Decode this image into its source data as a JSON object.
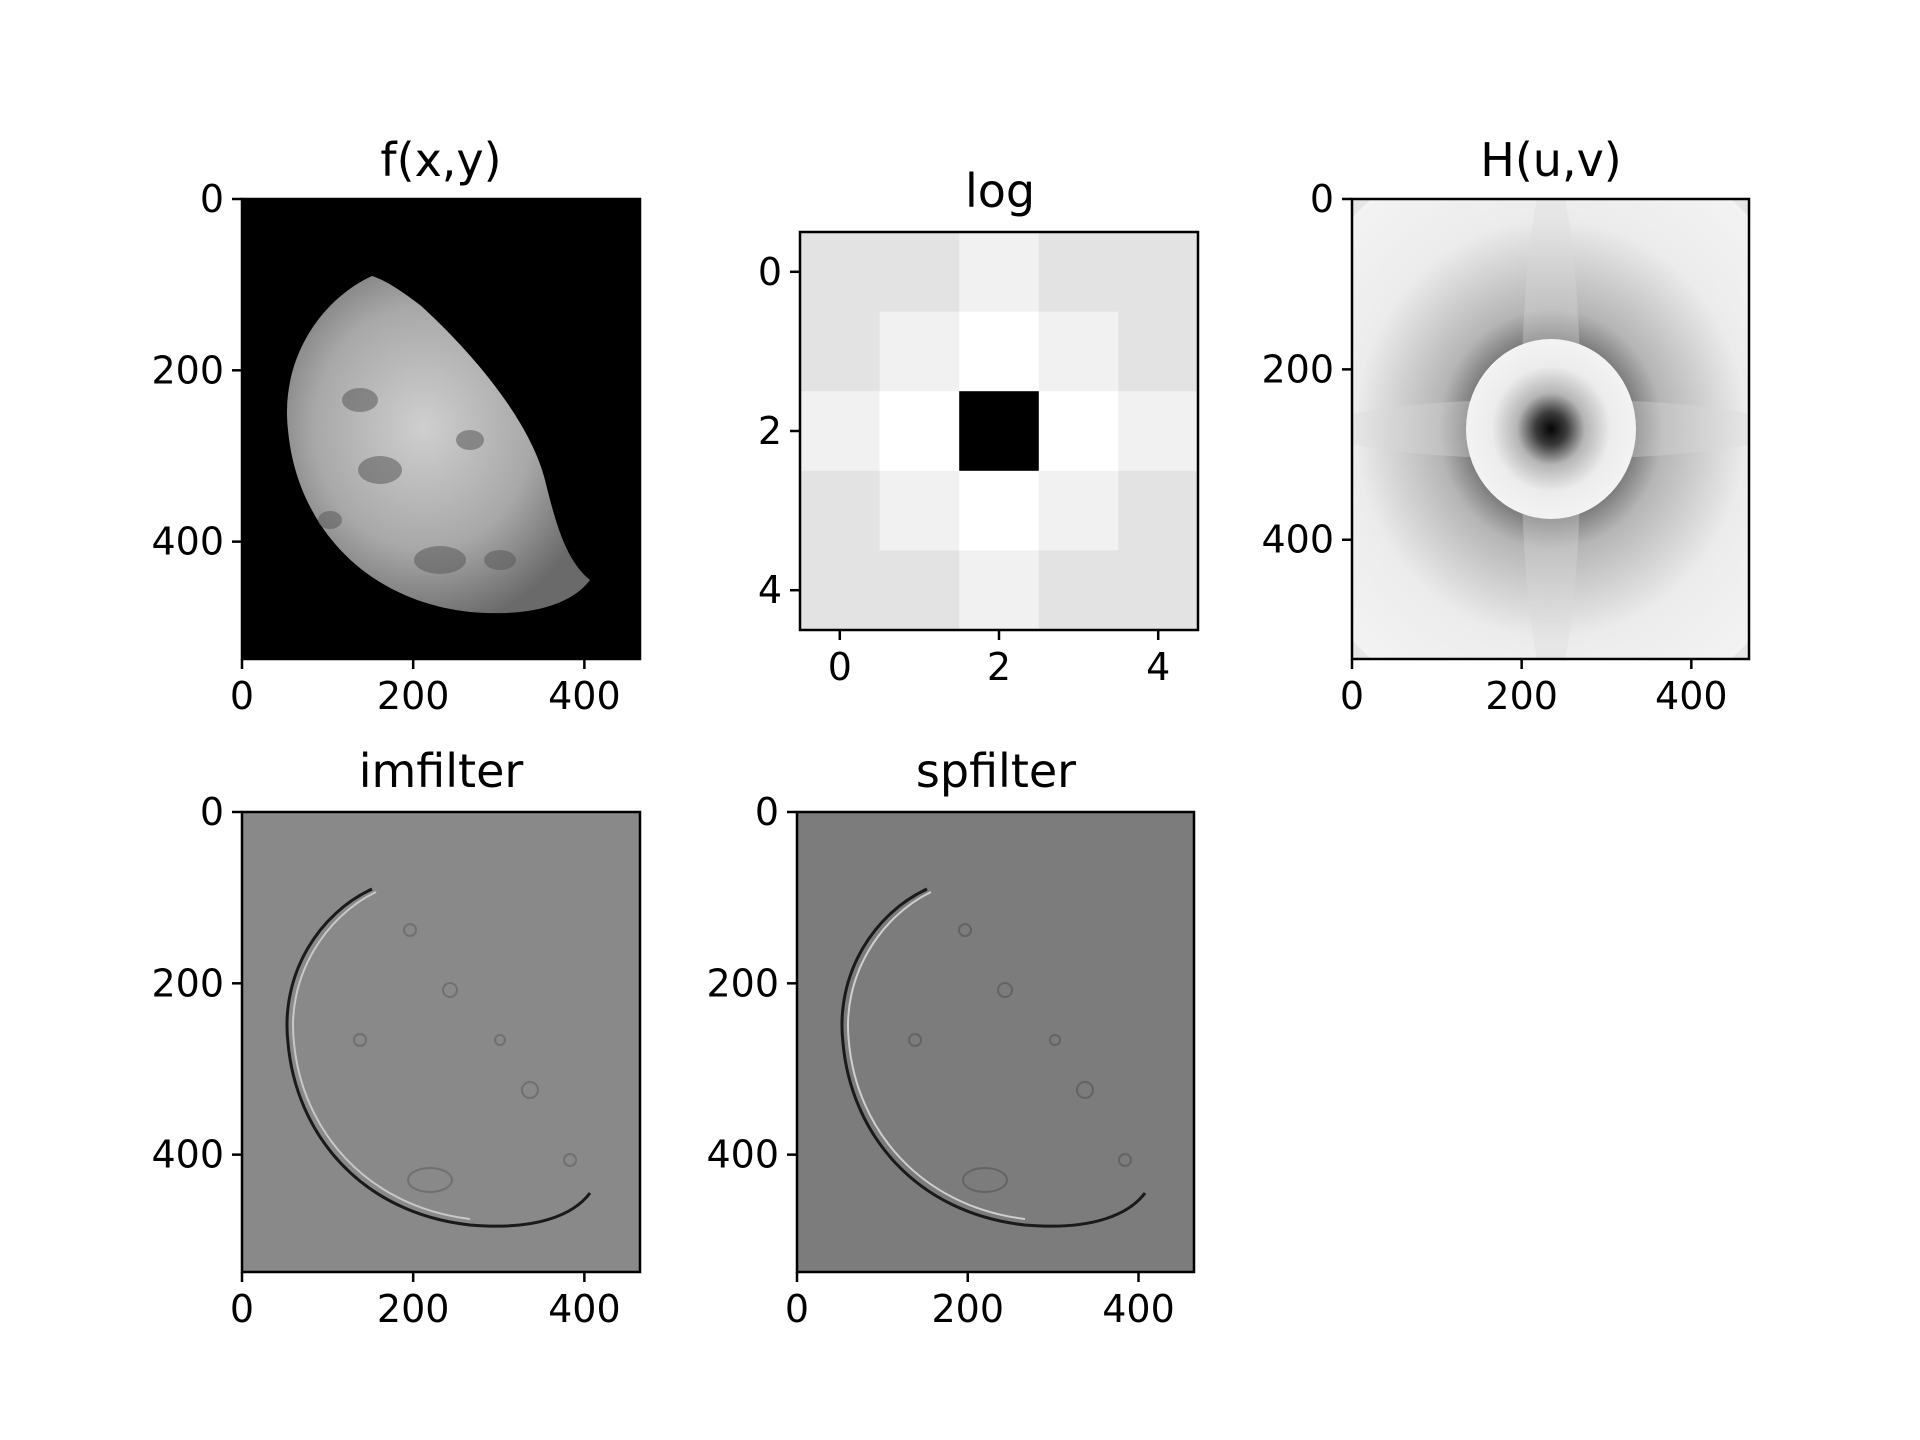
{
  "figure": {
    "background": "#ffffff"
  },
  "chart_data": [
    {
      "id": "fxy",
      "type": "image",
      "title": "f(x,y)",
      "image_size": {
        "width": 465,
        "height": 537
      },
      "xlim": [
        0,
        465
      ],
      "ylim": [
        537,
        0
      ],
      "xticks": [
        0,
        200,
        400
      ],
      "yticks": [
        0,
        200,
        400
      ],
      "xtick_labels": [
        "0",
        "200",
        "400"
      ],
      "ytick_labels": [
        "0",
        "200",
        "400"
      ],
      "content": "grayscale photo of a half-lit moon on black background",
      "colors": {
        "background": "#000000",
        "highlight": "#d8d8d8"
      }
    },
    {
      "id": "log",
      "type": "heatmap",
      "title": "log",
      "colormap": "gray",
      "xlim": [
        -0.5,
        4.5
      ],
      "ylim": [
        4.5,
        -0.5
      ],
      "xticks": [
        0,
        2,
        4
      ],
      "yticks": [
        0,
        2,
        4
      ],
      "xtick_labels": [
        "0",
        "2",
        "4"
      ],
      "ytick_labels": [
        "0",
        "2",
        "4"
      ],
      "matrix": [
        [
          0,
          0,
          1,
          0,
          0
        ],
        [
          0,
          1,
          2,
          1,
          0
        ],
        [
          1,
          2,
          -16,
          2,
          1
        ],
        [
          0,
          1,
          2,
          1,
          0
        ],
        [
          0,
          0,
          1,
          0,
          0
        ]
      ],
      "colors": {
        "level_0": "#1c1c1c",
        "level_1": "#0e0e0e",
        "level_2": "#000000",
        "level_center": "#ffffff"
      }
    },
    {
      "id": "huv",
      "type": "image",
      "title": "H(u,v)",
      "image_size": {
        "width": 468,
        "height": 540
      },
      "xlim": [
        0,
        468
      ],
      "ylim": [
        540,
        0
      ],
      "xticks": [
        0,
        200,
        400
      ],
      "yticks": [
        0,
        200,
        400
      ],
      "xtick_labels": [
        "0",
        "200",
        "400"
      ],
      "ytick_labels": [
        "0",
        "200",
        "400"
      ],
      "content": "frequency response, dark center fading to light gray edges",
      "colors": {
        "center": "#0a0a0a",
        "edge": "#f2f2f2",
        "corner": "#dcdcdc"
      }
    },
    {
      "id": "imfilter",
      "type": "image",
      "title": "imfilter",
      "image_size": {
        "width": 465,
        "height": 537
      },
      "xlim": [
        0,
        465
      ],
      "ylim": [
        537,
        0
      ],
      "xticks": [
        0,
        200,
        400
      ],
      "yticks": [
        0,
        200,
        400
      ],
      "xtick_labels": [
        "0",
        "200",
        "400"
      ],
      "ytick_labels": [
        "0",
        "200",
        "400"
      ],
      "content": "edge-filtered moon on mid-gray background",
      "colors": {
        "background": "#898989"
      }
    },
    {
      "id": "spfilter",
      "type": "image",
      "title": "spfilter",
      "image_size": {
        "width": 465,
        "height": 537
      },
      "xlim": [
        0,
        465
      ],
      "ylim": [
        537,
        0
      ],
      "xticks": [
        0,
        200,
        400
      ],
      "yticks": [
        0,
        200,
        400
      ],
      "xtick_labels": [
        "0",
        "200",
        "400"
      ],
      "ytick_labels": [
        "0",
        "200",
        "400"
      ],
      "content": "edge-filtered moon on mid-gray background",
      "colors": {
        "background": "#7c7c7c"
      }
    }
  ]
}
